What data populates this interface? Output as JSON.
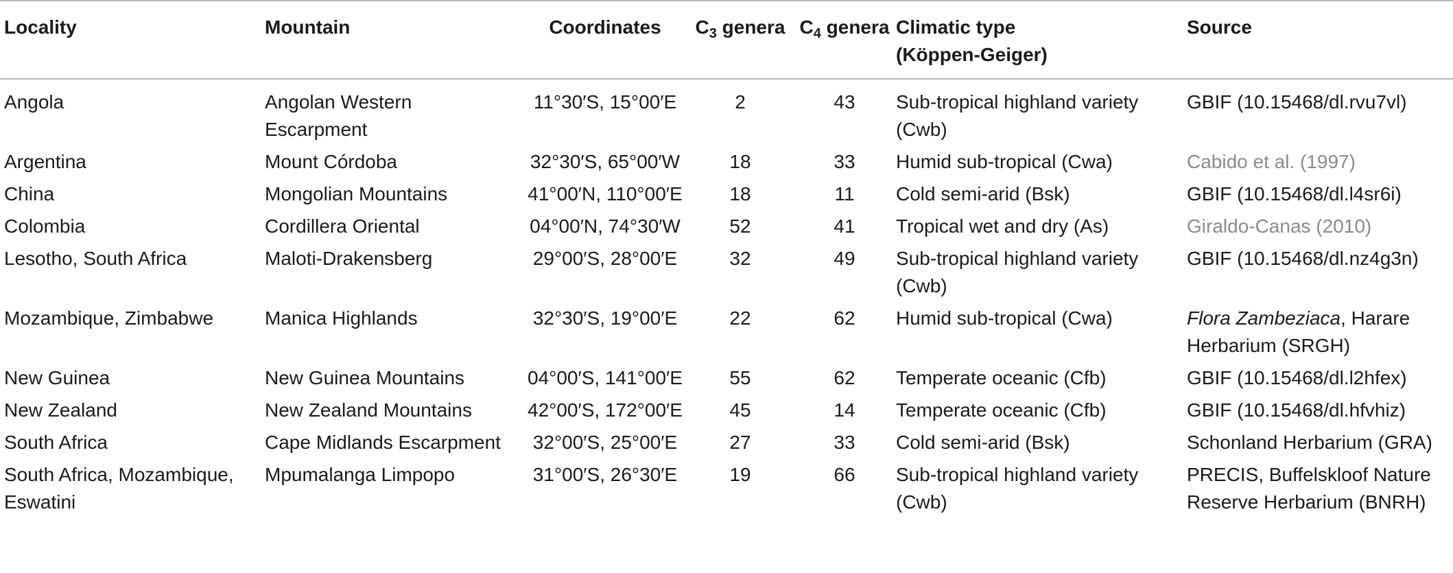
{
  "headers": {
    "locality": "Locality",
    "mountain": "Mountain",
    "coordinates": "Coordinates",
    "c3_prefix": "C",
    "c3_sub": "3",
    "c3_suffix": " genera",
    "c4_prefix": "C",
    "c4_sub": "4",
    "c4_suffix": " genera",
    "climatic_line1": "Climatic type",
    "climatic_line2": "(Köppen-Geiger)",
    "source": "Source"
  },
  "rows": [
    {
      "locality": "Angola",
      "mountain": "Angolan Western Escarpment",
      "coordinates": "11°30′S, 15°00′E",
      "c3": "2",
      "c4": "43",
      "climatic": "Sub-tropical highland variety (Cwb)",
      "source_italic": "",
      "source": "GBIF (10.15468/dl.rvu7vl)"
    },
    {
      "locality": "Argentina",
      "mountain": "Mount Córdoba",
      "coordinates": "32°30′S, 65°00′W",
      "c3": "18",
      "c4": "33",
      "climatic": "Humid sub-tropical (Cwa)",
      "source_italic": "",
      "source_link": "Cabido et al. (1997)"
    },
    {
      "locality": "China",
      "mountain": "Mongolian Mountains",
      "coordinates": "41°00′N, 110°00′E",
      "c3": "18",
      "c4": "11",
      "climatic": "Cold semi-arid (Bsk)",
      "source_italic": "",
      "source": "GBIF (10.15468/dl.l4sr6i)"
    },
    {
      "locality": "Colombia",
      "mountain": "Cordillera Oriental",
      "coordinates": "04°00′N, 74°30′W",
      "c3": "52",
      "c4": "41",
      "climatic": "Tropical wet and dry (As)",
      "source_italic": "",
      "source_link": "Giraldo-Canas (2010)"
    },
    {
      "locality": "Lesotho, South Africa",
      "mountain": "Maloti-Drakensberg",
      "coordinates": "29°00′S, 28°00′E",
      "c3": "32",
      "c4": "49",
      "climatic": "Sub-tropical highland variety (Cwb)",
      "source_italic": "",
      "source": "GBIF (10.15468/dl.nz4g3n)"
    },
    {
      "locality": "Mozambique, Zimbabwe",
      "mountain": "Manica Highlands",
      "coordinates": "32°30′S, 19°00′E",
      "c3": "22",
      "c4": "62",
      "climatic": "Humid sub-tropical (Cwa)",
      "source_italic": "Flora Zambeziaca",
      "source": ", Harare Herbarium (SRGH)"
    },
    {
      "locality": "New Guinea",
      "mountain": "New Guinea Mountains",
      "coordinates": "04°00′S, 141°00′E",
      "c3": "55",
      "c4": "62",
      "climatic": "Temperate oceanic (Cfb)",
      "source_italic": "",
      "source": "GBIF (10.15468/dl.l2hfex)"
    },
    {
      "locality": "New Zealand",
      "mountain": "New Zealand Mountains",
      "coordinates": "42°00′S, 172°00′E",
      "c3": "45",
      "c4": "14",
      "climatic": "Temperate oceanic (Cfb)",
      "source_italic": "",
      "source": "GBIF (10.15468/dl.hfvhiz)"
    },
    {
      "locality": "South Africa",
      "mountain": "Cape Midlands Escarpment",
      "coordinates": "32°00′S, 25°00′E",
      "c3": "27",
      "c4": "33",
      "climatic": "Cold semi-arid (Bsk)",
      "source_italic": "",
      "source": "Schonland Herbarium (GRA)"
    },
    {
      "locality": "South Africa, Mozambique, Eswatini",
      "mountain": "Mpumalanga Limpopo",
      "coordinates": "31°00′S, 26°30′E",
      "c3": "19",
      "c4": "66",
      "climatic": "Sub-tropical highland variety (Cwb)",
      "source_italic": "",
      "source": "PRECIS, Buffelskloof Nature Reserve Herbarium (BNRH)"
    }
  ]
}
